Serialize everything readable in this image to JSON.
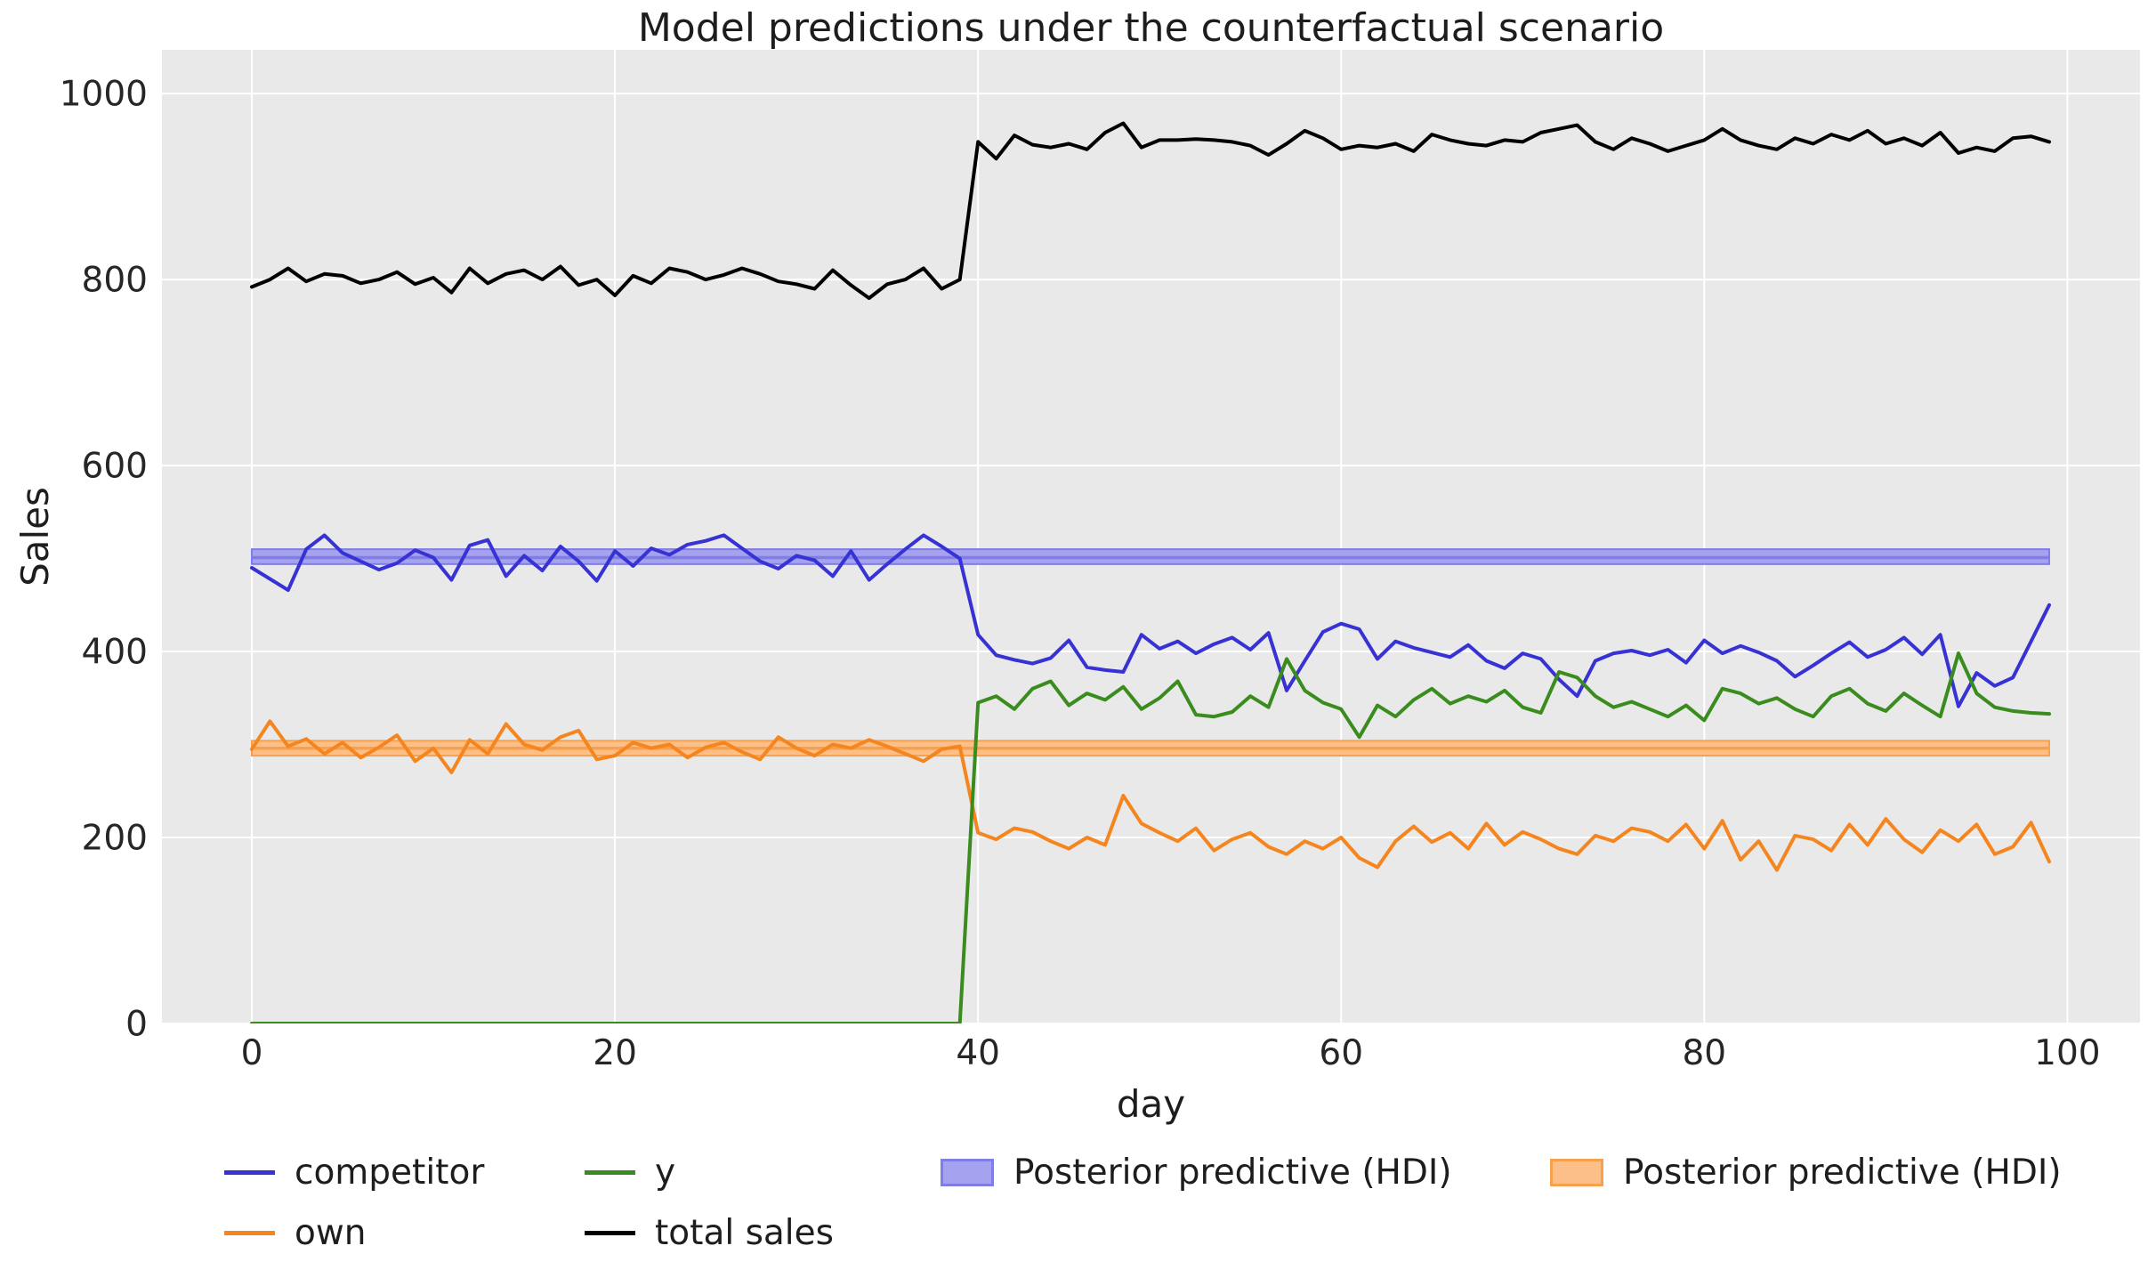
{
  "title": "Model predictions under the counterfactual scenario",
  "colors": {
    "figure_bg": "#ffffff",
    "plot_bg": "#e9e9e9",
    "grid": "#ffffff",
    "text": "#262626",
    "competitor_blue": "#3732d4",
    "own_orange": "#f5861f",
    "y_green": "#3a8c1e",
    "total_black": "#000000",
    "hdi_blue_fill": "#a5a2ef",
    "hdi_blue_edge": "#807de6",
    "hdi_orange_fill": "#fbbf87",
    "hdi_orange_edge": "#f7a14e"
  },
  "chart_data": {
    "type": "line",
    "title": "Model predictions under the counterfactual scenario",
    "xlabel": "day",
    "ylabel": "Sales",
    "x_ticks": [
      0,
      20,
      40,
      60,
      80,
      100
    ],
    "y_ticks": [
      0,
      200,
      400,
      600,
      800,
      1000
    ],
    "xlim": [
      -4.95,
      104
    ],
    "ylim": [
      0,
      1047
    ],
    "grid": "on",
    "legend_position": "below-axes",
    "x_range": {
      "start": 0,
      "end": 99,
      "step": 1
    },
    "intervention_day": 40,
    "series": [
      {
        "name": "competitor",
        "color": "#3732d4",
        "values": [
          490,
          478,
          466,
          510,
          525,
          506,
          497,
          488,
          495,
          509,
          501,
          477,
          514,
          520,
          481,
          503,
          487,
          513,
          497,
          476,
          508,
          492,
          511,
          504,
          515,
          519,
          525,
          511,
          497,
          489,
          503,
          498,
          481,
          508,
          477,
          494,
          510,
          525,
          513,
          500,
          418,
          396,
          391,
          387,
          393,
          412,
          383,
          380,
          378,
          418,
          403,
          411,
          398,
          408,
          415,
          402,
          420,
          358,
          390,
          421,
          430,
          424,
          392,
          411,
          404,
          399,
          394,
          407,
          390,
          382,
          398,
          392,
          370,
          352,
          390,
          398,
          401,
          396,
          402,
          388,
          412,
          398,
          406,
          399,
          390,
          373,
          385,
          398,
          410,
          394,
          402,
          415,
          397,
          418,
          341,
          377,
          363,
          372,
          411,
          450
        ]
      },
      {
        "name": "own",
        "color": "#f5861f",
        "values": [
          295,
          325,
          298,
          306,
          290,
          302,
          286,
          297,
          310,
          282,
          296,
          270,
          305,
          290,
          322,
          300,
          294,
          308,
          315,
          284,
          288,
          302,
          296,
          300,
          286,
          297,
          302,
          292,
          284,
          308,
          296,
          288,
          300,
          296,
          305,
          298,
          290,
          282,
          295,
          298,
          205,
          198,
          210,
          206,
          196,
          188,
          200,
          192,
          245,
          215,
          205,
          196,
          210,
          186,
          198,
          205,
          190,
          182,
          196,
          188,
          200,
          178,
          168,
          196,
          212,
          195,
          205,
          188,
          215,
          192,
          206,
          198,
          188,
          182,
          202,
          196,
          210,
          206,
          196,
          214,
          188,
          218,
          176,
          196,
          165,
          202,
          198,
          186,
          214,
          192,
          220,
          198,
          184,
          208,
          196,
          214,
          182,
          190,
          216,
          174
        ]
      },
      {
        "name": "y",
        "color": "#3a8c1e",
        "values": [
          0,
          0,
          0,
          0,
          0,
          0,
          0,
          0,
          0,
          0,
          0,
          0,
          0,
          0,
          0,
          0,
          0,
          0,
          0,
          0,
          0,
          0,
          0,
          0,
          0,
          0,
          0,
          0,
          0,
          0,
          0,
          0,
          0,
          0,
          0,
          0,
          0,
          0,
          0,
          0,
          345,
          352,
          338,
          360,
          368,
          342,
          355,
          348,
          362,
          338,
          350,
          368,
          332,
          330,
          335,
          352,
          340,
          392,
          358,
          345,
          338,
          308,
          342,
          330,
          348,
          360,
          344,
          352,
          346,
          358,
          340,
          334,
          378,
          372,
          352,
          340,
          346,
          338,
          330,
          342,
          326,
          360,
          355,
          344,
          350,
          338,
          330,
          352,
          360,
          344,
          336,
          355,
          342,
          330,
          398,
          355,
          340,
          336,
          334,
          333
        ]
      },
      {
        "name": "total sales",
        "color": "#000000",
        "values": [
          792,
          800,
          812,
          798,
          806,
          804,
          796,
          800,
          808,
          795,
          802,
          786,
          812,
          796,
          806,
          810,
          800,
          814,
          794,
          800,
          783,
          804,
          796,
          812,
          808,
          800,
          805,
          812,
          806,
          798,
          795,
          790,
          810,
          794,
          780,
          795,
          800,
          812,
          790,
          800,
          948,
          930,
          955,
          945,
          942,
          946,
          940,
          958,
          968,
          942,
          950,
          950,
          951,
          950,
          948,
          944,
          934,
          946,
          960,
          952,
          940,
          944,
          942,
          946,
          938,
          956,
          950,
          946,
          944,
          950,
          948,
          958,
          962,
          966,
          948,
          940,
          952,
          946,
          938,
          944,
          950,
          962,
          950,
          944,
          940,
          952,
          946,
          956,
          950,
          960,
          946,
          952,
          944,
          958,
          936,
          942,
          938,
          952,
          954,
          948
        ]
      }
    ],
    "bands": [
      {
        "name": "Posterior predictive (HDI)",
        "series": "competitor",
        "fill": "#a5a2ef",
        "edge": "#807de6",
        "lo": 494,
        "hi": 510,
        "mid": 501,
        "x_start": 0,
        "x_end": 99
      },
      {
        "name": "Posterior predictive (HDI)",
        "series": "own",
        "fill": "#fbbf87",
        "edge": "#f7a14e",
        "lo": 288,
        "hi": 304,
        "mid": 296,
        "x_start": 0,
        "x_end": 99
      }
    ],
    "legend": [
      {
        "label": "competitor",
        "swatch": "line",
        "color": "#3732d4"
      },
      {
        "label": "own",
        "swatch": "line",
        "color": "#f5861f"
      },
      {
        "label": "y",
        "swatch": "line",
        "color": "#3a8c1e"
      },
      {
        "label": "total sales",
        "swatch": "line",
        "color": "#000000"
      },
      {
        "label": "Posterior predictive (HDI)",
        "swatch": "patch",
        "color": "#a5a2ef",
        "edge": "#807de6"
      },
      {
        "label": "Posterior predictive (HDI)",
        "swatch": "patch",
        "color": "#fbbf87",
        "edge": "#f7a14e"
      }
    ]
  }
}
